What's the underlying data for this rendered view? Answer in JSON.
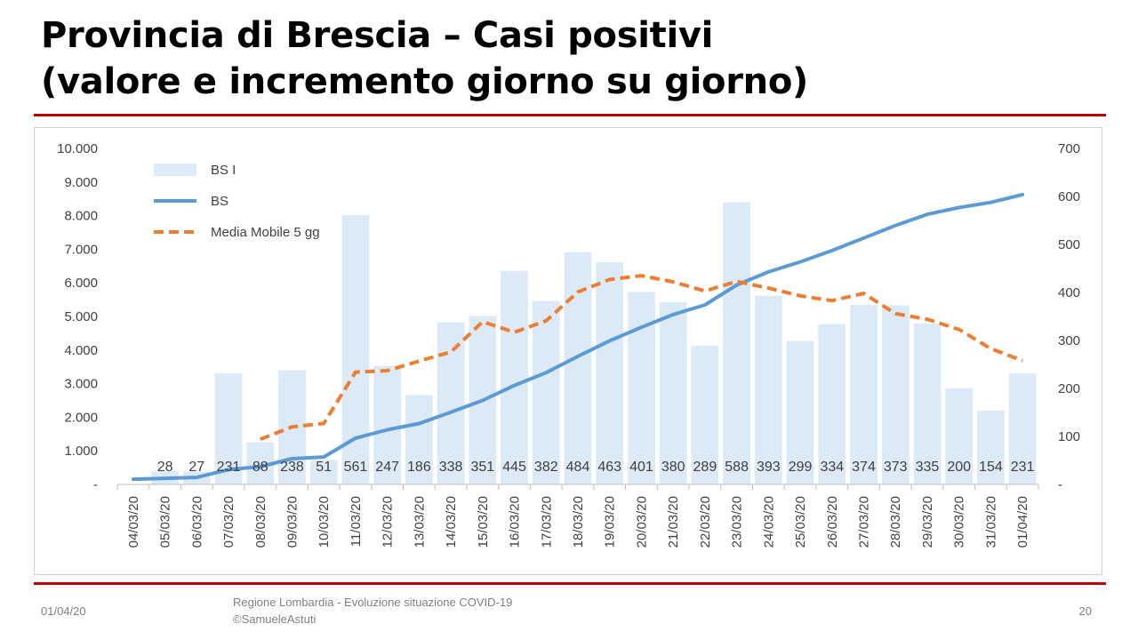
{
  "slide": {
    "title_line1": "Provincia di Brescia – Casi positivi",
    "title_line2": "(valore e incremento giorno su giorno)",
    "footer_date": "01/04/20",
    "footer_source_line1": "Regione Lombardia - Evoluzione situazione COVID-19",
    "footer_source_line2": "©SamueleAstuti",
    "page_number": "20"
  },
  "chart_data": {
    "type": "bar",
    "categories": [
      "04/03/20",
      "05/03/20",
      "06/03/20",
      "07/03/20",
      "08/03/20",
      "09/03/20",
      "10/03/20",
      "11/03/20",
      "12/03/20",
      "13/03/20",
      "14/03/20",
      "15/03/20",
      "16/03/20",
      "17/03/20",
      "18/03/20",
      "19/03/20",
      "20/03/20",
      "21/03/20",
      "22/03/20",
      "23/03/20",
      "24/03/20",
      "25/03/20",
      "26/03/20",
      "27/03/20",
      "28/03/20",
      "29/03/20",
      "30/03/20",
      "31/03/20",
      "01/04/20"
    ],
    "left_axis": {
      "min": 0,
      "max": 10000,
      "ticks": [
        {
          "value": 0,
          "label": "-"
        },
        {
          "value": 1000,
          "label": "1.000"
        },
        {
          "value": 2000,
          "label": "2.000"
        },
        {
          "value": 3000,
          "label": "3.000"
        },
        {
          "value": 4000,
          "label": "4.000"
        },
        {
          "value": 5000,
          "label": "5.000"
        },
        {
          "value": 6000,
          "label": "6.000"
        },
        {
          "value": 7000,
          "label": "7.000"
        },
        {
          "value": 8000,
          "label": "8.000"
        },
        {
          "value": 9000,
          "label": "9.000"
        },
        {
          "value": 10000,
          "label": "10.000"
        }
      ]
    },
    "right_axis": {
      "min": 0,
      "max": 700,
      "ticks": [
        {
          "value": 0,
          "label": "-"
        },
        {
          "value": 100,
          "label": "100"
        },
        {
          "value": 200,
          "label": "200"
        },
        {
          "value": 300,
          "label": "300"
        },
        {
          "value": 400,
          "label": "400"
        },
        {
          "value": 500,
          "label": "500"
        },
        {
          "value": 600,
          "label": "600"
        },
        {
          "value": 700,
          "label": "700"
        }
      ]
    },
    "grid": false,
    "legend_position": "top-left",
    "series": [
      {
        "name": "BS I",
        "kind": "bar",
        "axis": "right",
        "color": "#dce9f6",
        "values": [
          null,
          28,
          27,
          231,
          88,
          238,
          51,
          561,
          247,
          186,
          338,
          351,
          445,
          382,
          484,
          463,
          401,
          380,
          289,
          588,
          393,
          299,
          334,
          374,
          373,
          335,
          200,
          154,
          231
        ],
        "labels": [
          "",
          "28",
          "27",
          "231",
          "88",
          "238",
          "51",
          "561",
          "247",
          "186",
          "338",
          "351",
          "445",
          "382",
          "484",
          "463",
          "401",
          "380",
          "289",
          "588",
          "393",
          "299",
          "334",
          "374",
          "373",
          "335",
          "200",
          "154",
          "231"
        ]
      },
      {
        "name": "BS",
        "kind": "line",
        "axis": "left",
        "color": "#5b9bd5",
        "values": [
          155,
          183,
          210,
          441,
          529,
          767,
          818,
          1379,
          1626,
          1812,
          2150,
          2501,
          2946,
          3328,
          3812,
          4275,
          4676,
          5056,
          5345,
          5933,
          6326,
          6625,
          6959,
          7333,
          7706,
          8041,
          8241,
          8395,
          8626
        ]
      },
      {
        "name": "Media Mobile 5 gg",
        "kind": "line",
        "dashed": true,
        "axis": "right",
        "color": "#ed7d31",
        "values": [
          null,
          null,
          null,
          null,
          94,
          120,
          127,
          234,
          237,
          257,
          276,
          339,
          317,
          341,
          401,
          427,
          435,
          422,
          403,
          423,
          409,
          393,
          383,
          398,
          356,
          344,
          323,
          283,
          258
        ]
      }
    ]
  }
}
